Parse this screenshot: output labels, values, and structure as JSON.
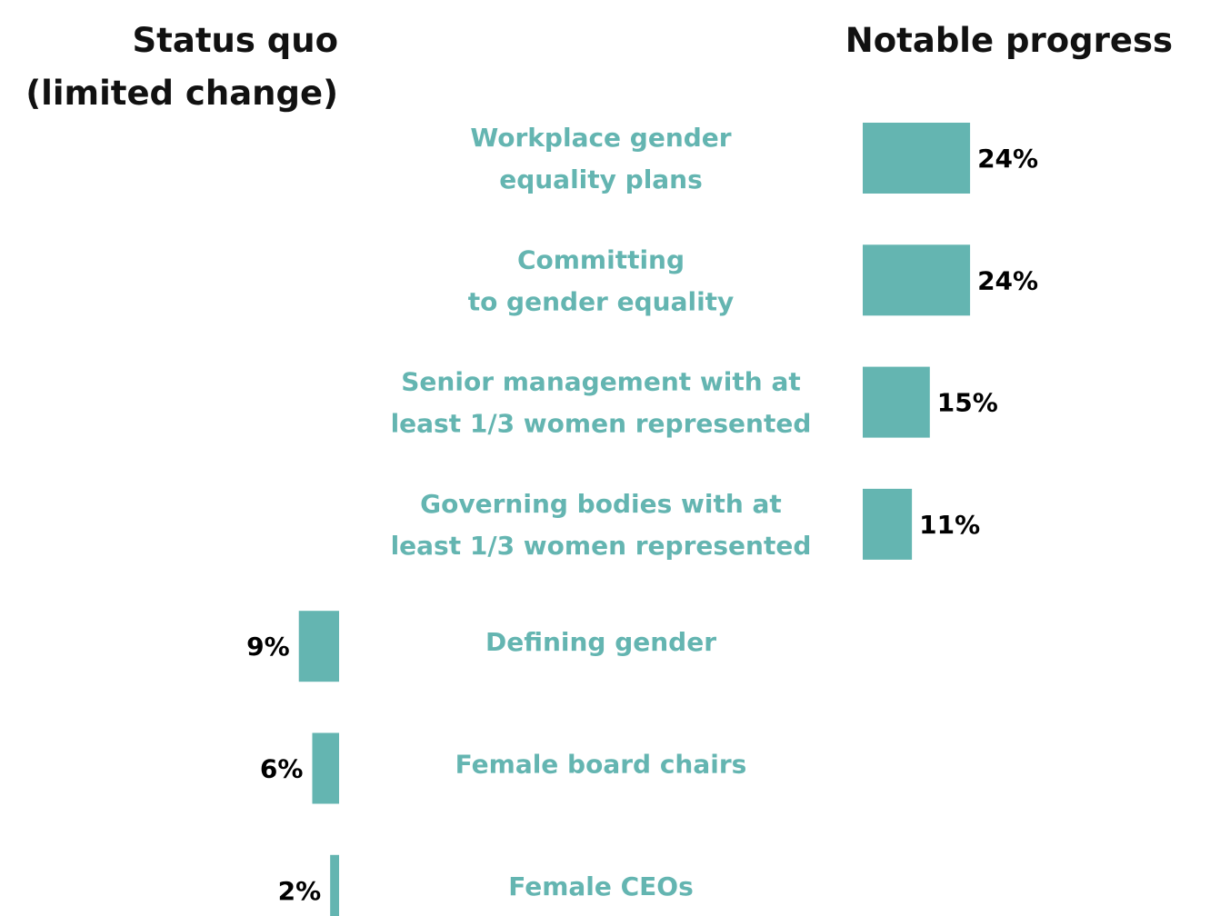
{
  "headers": {
    "left_line1": "Status quo",
    "left_line2": "(limited change)",
    "right": "Notable progress"
  },
  "colors": {
    "bar": "#64b5b1",
    "category_text": "#64b5b1",
    "value_text": "#000000",
    "header_text": "#111111"
  },
  "chart_data": {
    "type": "bar",
    "orientation": "horizontal-diverging",
    "groups": [
      "Status quo (limited change)",
      "Notable progress"
    ],
    "categories": [
      [
        "Workplace gender",
        "equality plans"
      ],
      [
        "Committing",
        "to gender equality"
      ],
      [
        "Senior management with at",
        "least 1/3 women represented"
      ],
      [
        "Governing bodies with at",
        "least 1/3 women represented"
      ],
      [
        "Defining gender"
      ],
      [
        "Female board chairs"
      ],
      [
        "Female CEOs"
      ]
    ],
    "values": [
      24,
      24,
      15,
      11,
      9,
      6,
      2
    ],
    "value_labels": [
      "24%",
      "24%",
      "15%",
      "11%",
      "9%",
      "6%",
      "2%"
    ],
    "group_of_each": [
      "Notable progress",
      "Notable progress",
      "Notable progress",
      "Notable progress",
      "Status quo (limited change)",
      "Status quo (limited change)",
      "Status quo (limited change)"
    ],
    "unit": "%"
  }
}
